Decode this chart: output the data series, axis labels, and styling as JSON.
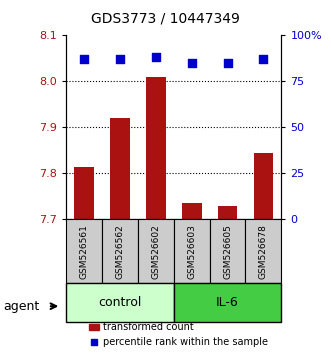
{
  "title": "GDS3773 / 10447349",
  "samples": [
    "GSM526561",
    "GSM526562",
    "GSM526602",
    "GSM526603",
    "GSM526605",
    "GSM526678"
  ],
  "groups": [
    "control",
    "control",
    "control",
    "IL-6",
    "IL-6",
    "IL-6"
  ],
  "transformed_counts": [
    7.815,
    7.92,
    8.01,
    7.735,
    7.73,
    7.845
  ],
  "percentile_ranks": [
    87,
    87,
    88,
    85,
    85,
    87
  ],
  "ylim_left": [
    7.7,
    8.1
  ],
  "ylim_right": [
    0,
    100
  ],
  "yticks_left": [
    7.7,
    7.8,
    7.9,
    8.0,
    8.1
  ],
  "yticks_right": [
    0,
    25,
    50,
    75,
    100
  ],
  "ytick_labels_right": [
    "0",
    "25",
    "50",
    "75",
    "100%"
  ],
  "bar_color": "#aa1111",
  "dot_color": "#0000cc",
  "control_color": "#ccffcc",
  "il6_color": "#44cc44",
  "sample_bg_color": "#cccccc",
  "bar_bottom": 7.7,
  "legend_bar_label": "transformed count",
  "legend_dot_label": "percentile rank within the sample",
  "group_label": "agent"
}
